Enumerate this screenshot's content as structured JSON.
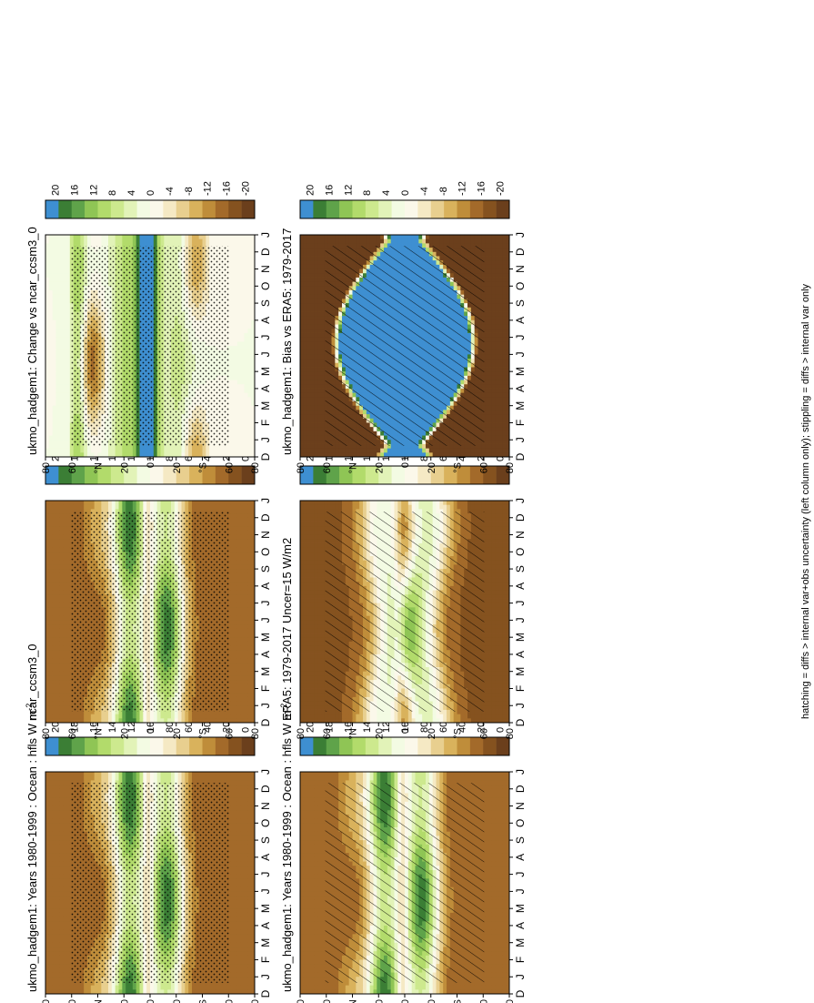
{
  "footnote": "hatching = diffs > internal var+obs uncertainty (left column only); stippling = diffs > internal var only",
  "colors": {
    "ramp": [
      "#6b3f1c",
      "#85521f",
      "#a36a2a",
      "#bf8d3a",
      "#d9b25c",
      "#e8cf8f",
      "#f5e9c4",
      "#fbf8ea",
      "#f3fbe3",
      "#e2f3b8",
      "#cde98e",
      "#b2db6b",
      "#8fc555",
      "#5fa34a",
      "#3b7e35",
      "#3e8fd1"
    ]
  },
  "chart_data": [
    {
      "id": "top-left",
      "type": "heatmap",
      "title": "ukmo_hadgem1: Years 1980-1999 : Ocean : hfls W m",
      "title_superscript": "-2",
      "x_ticks": [
        "D",
        "J",
        "F",
        "M",
        "A",
        "M",
        "J",
        "J",
        "A",
        "S",
        "O",
        "N",
        "D",
        "J"
      ],
      "y_ticks": [
        "80",
        "60",
        "°N",
        "20",
        "0",
        "20",
        "°S",
        "60",
        "80"
      ],
      "colorbar": [
        "200",
        "180",
        "160",
        "140",
        "120",
        "100",
        "80",
        "60",
        "40",
        "20",
        "0"
      ],
      "colorbar_range": [
        0,
        200
      ],
      "field": "mean",
      "pattern": "hatch"
    },
    {
      "id": "top-right",
      "type": "heatmap",
      "title": "ukmo_hadgem1: Years 1980-1999 : Ocean : hfls W m",
      "title_superscript": "-2",
      "x_ticks": [
        "D",
        "J",
        "F",
        "M",
        "A",
        "M",
        "J",
        "J",
        "A",
        "S",
        "O",
        "N",
        "D",
        "J"
      ],
      "y_ticks": [
        "80",
        "60",
        "°N",
        "20",
        "0",
        "20",
        "°S",
        "60",
        "80"
      ],
      "colorbar": [
        "200",
        "180",
        "160",
        "140",
        "120",
        "100",
        "80",
        "60",
        "40",
        "20",
        "0"
      ],
      "colorbar_range": [
        0,
        200
      ],
      "field": "mean",
      "pattern": "stipple"
    },
    {
      "id": "middle-left",
      "type": "heatmap",
      "title": "ERA5: 1979-2017 Uncer=15 W/m2",
      "title_superscript": "",
      "x_ticks": [
        "D",
        "J",
        "F",
        "M",
        "A",
        "M",
        "J",
        "J",
        "A",
        "S",
        "O",
        "N",
        "D",
        "J"
      ],
      "y_ticks": [
        "80",
        "60",
        "°N",
        "20",
        "0",
        "20",
        "°S",
        "60",
        "80"
      ],
      "colorbar": [
        "200",
        "180",
        "160",
        "140",
        "120",
        "100",
        "80",
        "60",
        "40",
        "20",
        "0"
      ],
      "colorbar_range": [
        0,
        200
      ],
      "field": "obs",
      "pattern": "hatch"
    },
    {
      "id": "middle-right",
      "type": "heatmap",
      "title": "ncar_ccsm3_0",
      "title_superscript": "",
      "x_ticks": [
        "D",
        "J",
        "F",
        "M",
        "A",
        "M",
        "J",
        "J",
        "A",
        "S",
        "O",
        "N",
        "D",
        "J"
      ],
      "y_ticks": [
        "80",
        "60",
        "°N",
        "20",
        "0",
        "20",
        "°S",
        "60",
        "80"
      ],
      "colorbar": [
        "200",
        "180",
        "160",
        "140",
        "120",
        "100",
        "80",
        "60",
        "40",
        "20",
        "0"
      ],
      "colorbar_range": [
        0,
        200
      ],
      "field": "mean",
      "pattern": "stipple"
    },
    {
      "id": "bottom-left",
      "type": "heatmap",
      "title": "ukmo_hadgem1: Bias vs ERA5: 1979-2017",
      "title_superscript": "",
      "x_ticks": [
        "D",
        "J",
        "F",
        "M",
        "A",
        "M",
        "J",
        "J",
        "A",
        "S",
        "O",
        "N",
        "D",
        "J"
      ],
      "y_ticks": [
        "80",
        "60",
        "°N",
        "20",
        "0",
        "20",
        "°S",
        "60",
        "80"
      ],
      "colorbar": [
        "20",
        "16",
        "12",
        "8",
        "4",
        "0",
        "-4",
        "-8",
        "-12",
        "-16",
        "-20"
      ],
      "colorbar_range": [
        -20,
        20
      ],
      "field": "bias",
      "pattern": "hatch"
    },
    {
      "id": "bottom-right",
      "type": "heatmap",
      "title": "ukmo_hadgem1: Change vs ncar_ccsm3_0",
      "title_superscript": "",
      "x_ticks": [
        "D",
        "J",
        "F",
        "M",
        "A",
        "M",
        "J",
        "J",
        "A",
        "S",
        "O",
        "N",
        "D",
        "J"
      ],
      "y_ticks": [
        "80",
        "60",
        "°N",
        "20",
        "0",
        "20",
        "°S",
        "60",
        "80"
      ],
      "colorbar": [
        "20",
        "16",
        "12",
        "8",
        "4",
        "0",
        "-4",
        "-8",
        "-12",
        "-16",
        "-20"
      ],
      "colorbar_range": [
        -20,
        20
      ],
      "field": "change",
      "pattern": "stipple"
    }
  ]
}
